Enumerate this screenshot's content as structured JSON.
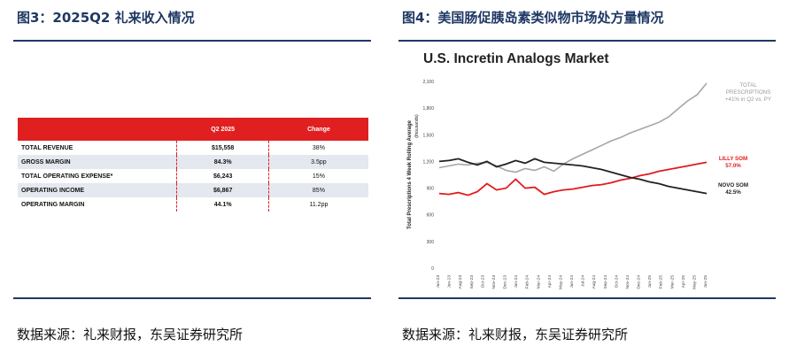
{
  "left": {
    "figure_title": "图3：2025Q2 礼来收入情况",
    "table": {
      "headers": [
        "",
        "Q2 2025",
        "Change"
      ],
      "rows": [
        {
          "label": "TOTAL REVENUE",
          "value": "$15,558",
          "change": "38%"
        },
        {
          "label": "GROSS MARGIN",
          "value": "84.3%",
          "change": "3.5pp"
        },
        {
          "label": "TOTAL OPERATING EXPENSE*",
          "value": "$6,243",
          "change": "15%"
        },
        {
          "label": "OPERATING INCOME",
          "value": "$6,867",
          "change": "85%"
        },
        {
          "label": "OPERATING MARGIN",
          "value": "44.1%",
          "change": "11.2pp"
        }
      ]
    },
    "source": "数据来源：礼来财报，东吴证券研究所"
  },
  "right": {
    "figure_title": "图4：美国肠促胰岛素类似物市场处方量情况",
    "source": "数据来源：礼来财报，东吴证券研究所"
  },
  "chart_data": {
    "type": "line",
    "title": "U.S. Incretin Analogs Market",
    "ylabel": "Total Prescriptions 4 Week Rolling Average",
    "ylabel_units": "(thousands)",
    "ylim": [
      0,
      2100
    ],
    "yticks": [
      "0",
      "300",
      "600",
      "900",
      "1,200",
      "1,500",
      "1,800",
      "2,100"
    ],
    "x": [
      "Jan-23",
      "Mar-23",
      "Apr-23",
      "May-23",
      "Jun-23",
      "Jul-23",
      "Aug-23",
      "Sep-23",
      "Oct-23",
      "Nov-23",
      "Dec-23",
      "Jan-24",
      "Feb-24",
      "Mar-24",
      "Apr-24",
      "May-24",
      "Jun-24",
      "Jul-24",
      "Aug-24",
      "Sep-24",
      "Oct-24",
      "Nov-24",
      "Dec-24",
      "Jan-25",
      "Feb-25",
      "Mar-25",
      "Apr-25",
      "May-25",
      "Jun-25"
    ],
    "xtick_labels": [
      "Jan-23",
      "Jun-23",
      "Aug-23",
      "Sep-23",
      "Oct-23",
      "Nov-23",
      "Dec-23",
      "Jan-24",
      "Feb-24",
      "Mar-24",
      "Apr-24",
      "May-24",
      "Jun-24",
      "Jul-24",
      "Aug-24",
      "Sep-24",
      "Oct-24",
      "Nov-24",
      "Dec-24",
      "Jan-25",
      "Feb-25",
      "Mar-25",
      "Apr-25",
      "May-25",
      "Jun-25"
    ],
    "grid": false,
    "series": [
      {
        "name": "TOTAL PRESCRIPTIONS",
        "annotation": "+41% in Q2 vs. PY",
        "color": "#a6a6a6",
        "values": [
          1130,
          1150,
          1170,
          1160,
          1180,
          1190,
          1150,
          1100,
          1080,
          1120,
          1100,
          1140,
          1090,
          1170,
          1230,
          1280,
          1330,
          1380,
          1430,
          1470,
          1520,
          1560,
          1600,
          1640,
          1700,
          1790,
          1880,
          1950,
          2080
        ]
      },
      {
        "name": "LILLY SOM",
        "annotation": "57.0%",
        "color": "#e31a1c",
        "values": [
          840,
          830,
          850,
          820,
          860,
          950,
          880,
          900,
          1000,
          900,
          910,
          830,
          860,
          880,
          890,
          910,
          930,
          940,
          960,
          990,
          1010,
          1040,
          1060,
          1090,
          1110,
          1130,
          1150,
          1170,
          1190
        ]
      },
      {
        "name": "NOVO SOM",
        "annotation": "42.5%",
        "color": "#222222",
        "values": [
          1200,
          1210,
          1230,
          1190,
          1160,
          1200,
          1140,
          1170,
          1210,
          1180,
          1230,
          1190,
          1180,
          1170,
          1160,
          1150,
          1130,
          1110,
          1080,
          1050,
          1020,
          1000,
          970,
          950,
          920,
          900,
          880,
          860,
          840
        ]
      }
    ]
  }
}
